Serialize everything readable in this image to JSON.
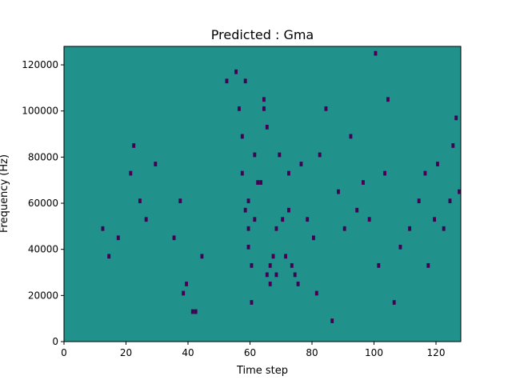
{
  "chart_data": {
    "type": "heatmap",
    "title": "Predicted : Gma",
    "xlabel": "Time step",
    "ylabel": "Frequency (Hz)",
    "xlim": [
      0,
      128
    ],
    "ylim": [
      0,
      128000
    ],
    "n_time_steps": 128,
    "n_frequency_bins": 64,
    "x_ticks": [
      {
        "value": 0,
        "label": "0"
      },
      {
        "value": 20,
        "label": "20"
      },
      {
        "value": 40,
        "label": "40"
      },
      {
        "value": 60,
        "label": "60"
      },
      {
        "value": 80,
        "label": "80"
      },
      {
        "value": 100,
        "label": "100"
      },
      {
        "value": 120,
        "label": "120"
      }
    ],
    "y_ticks": [
      {
        "value": 0,
        "label": "0"
      },
      {
        "value": 20000,
        "label": "20000"
      },
      {
        "value": 40000,
        "label": "40000"
      },
      {
        "value": 60000,
        "label": "60000"
      },
      {
        "value": 80000,
        "label": "80000"
      },
      {
        "value": 100000,
        "label": "100000"
      },
      {
        "value": 120000,
        "label": "120000"
      }
    ],
    "levels": {
      "-1": "#440154",
      "0": "#21918c",
      "1": "#fde725"
    },
    "background_level": 0,
    "cells": [
      [
        46,
        0,
        28,
        1
      ],
      [
        47,
        0,
        56,
        1
      ],
      [
        48,
        0,
        12,
        1
      ],
      [
        48,
        0,
        20,
        1
      ],
      [
        48,
        0,
        36,
        1
      ],
      [
        48,
        0,
        44,
        1
      ],
      [
        48,
        0,
        48,
        1
      ],
      [
        48,
        0,
        52,
        1
      ],
      [
        48,
        0,
        56,
        1
      ],
      [
        49,
        0,
        6,
        1
      ],
      [
        49,
        0,
        40,
        1
      ],
      [
        49,
        0,
        44,
        1
      ],
      [
        50,
        0,
        48,
        1
      ],
      [
        51,
        0,
        10,
        1
      ],
      [
        51,
        0,
        34,
        1
      ],
      [
        53,
        0,
        18,
        1
      ],
      [
        59,
        0,
        38,
        1
      ],
      [
        46,
        0,
        2,
        1
      ],
      [
        46,
        0,
        10,
        1
      ],
      [
        47,
        0,
        4,
        1
      ],
      [
        58,
        0,
        8,
        1
      ],
      [
        58,
        0,
        38,
        1
      ],
      [
        59,
        0,
        40,
        1
      ],
      [
        59,
        0,
        44,
        1
      ],
      [
        60,
        0,
        44,
        1
      ],
      [
        68,
        0,
        33,
        1
      ],
      [
        69,
        0,
        33,
        1
      ],
      [
        13,
        0,
        4,
        1
      ],
      [
        15,
        0,
        10,
        1
      ],
      [
        22,
        0,
        20,
        1
      ],
      [
        23,
        0,
        10,
        1
      ],
      [
        24,
        0,
        12,
        1
      ],
      [
        44,
        0,
        28,
        1
      ],
      [
        46,
        0,
        34,
        1
      ],
      [
        52,
        0,
        36,
        1
      ],
      [
        53,
        0,
        12,
        1
      ],
      [
        55,
        0,
        42,
        1
      ],
      [
        56,
        0,
        44,
        1
      ],
      [
        56,
        0,
        48,
        1
      ],
      [
        58,
        0,
        32,
        1
      ],
      [
        60,
        0,
        26,
        1
      ],
      [
        61,
        0,
        24,
        1
      ],
      [
        62,
        0,
        28,
        1
      ],
      [
        62,
        0,
        16,
        1
      ],
      [
        62,
        0,
        4,
        1
      ],
      [
        63,
        0,
        20,
        1
      ],
      [
        73,
        0,
        30,
        1
      ],
      [
        77,
        0,
        22,
        1
      ],
      [
        82,
        0,
        58,
        1
      ],
      [
        83,
        0,
        62,
        1
      ],
      [
        89,
        0,
        31,
        1
      ],
      [
        93,
        0,
        62,
        1
      ],
      [
        97,
        0,
        34,
        1
      ],
      [
        99,
        0,
        22,
        1
      ],
      [
        105,
        0,
        30,
        1
      ],
      [
        107,
        0,
        10,
        1
      ],
      [
        108,
        0,
        44,
        1
      ],
      [
        109,
        0,
        18,
        1
      ],
      [
        110,
        0,
        28,
        1
      ],
      [
        112,
        0,
        18,
        1
      ],
      [
        113,
        0,
        20,
        1
      ],
      [
        114,
        0,
        18,
        1
      ],
      [
        115,
        0,
        48,
        1
      ],
      [
        118,
        0,
        20,
        1
      ],
      [
        118,
        0,
        30,
        1
      ],
      [
        12,
        -1,
        24,
        1
      ],
      [
        14,
        -1,
        18,
        1
      ],
      [
        17,
        -1,
        22,
        1
      ],
      [
        21,
        -1,
        36,
        1
      ],
      [
        22,
        -1,
        42,
        1
      ],
      [
        24,
        -1,
        30,
        1
      ],
      [
        26,
        -1,
        26,
        1
      ],
      [
        29,
        -1,
        38,
        1
      ],
      [
        35,
        -1,
        22,
        1
      ],
      [
        37,
        -1,
        30,
        1
      ],
      [
        38,
        -1,
        10,
        1
      ],
      [
        39,
        -1,
        12,
        1
      ],
      [
        41,
        -1,
        6,
        1
      ],
      [
        42,
        -1,
        6,
        1
      ],
      [
        44,
        -1,
        18,
        1
      ],
      [
        52,
        -1,
        56,
        1
      ],
      [
        55,
        -1,
        58,
        1
      ],
      [
        56,
        -1,
        50,
        1
      ],
      [
        57,
        -1,
        44,
        1
      ],
      [
        57,
        -1,
        36,
        1
      ],
      [
        58,
        -1,
        56,
        1
      ],
      [
        58,
        -1,
        28,
        1
      ],
      [
        59,
        -1,
        20,
        1
      ],
      [
        59,
        -1,
        24,
        1
      ],
      [
        59,
        -1,
        30,
        1
      ],
      [
        60,
        -1,
        16,
        1
      ],
      [
        60,
        -1,
        8,
        1
      ],
      [
        61,
        -1,
        26,
        1
      ],
      [
        61,
        -1,
        40,
        1
      ],
      [
        62,
        -1,
        34,
        1
      ],
      [
        63,
        -1,
        34,
        1
      ],
      [
        64,
        -1,
        50,
        1
      ],
      [
        64,
        -1,
        52,
        1
      ],
      [
        65,
        -1,
        46,
        1
      ],
      [
        65,
        -1,
        14,
        1
      ],
      [
        66,
        -1,
        12,
        1
      ],
      [
        66,
        -1,
        16,
        1
      ],
      [
        67,
        -1,
        18,
        1
      ],
      [
        68,
        -1,
        24,
        1
      ],
      [
        68,
        -1,
        14,
        1
      ],
      [
        69,
        -1,
        40,
        1
      ],
      [
        70,
        -1,
        26,
        1
      ],
      [
        71,
        -1,
        18,
        1
      ],
      [
        72,
        -1,
        28,
        1
      ],
      [
        72,
        -1,
        36,
        1
      ],
      [
        73,
        -1,
        16,
        1
      ],
      [
        74,
        -1,
        14,
        1
      ],
      [
        75,
        -1,
        12,
        1
      ],
      [
        76,
        -1,
        38,
        1
      ],
      [
        78,
        -1,
        26,
        1
      ],
      [
        80,
        -1,
        22,
        1
      ],
      [
        81,
        -1,
        10,
        1
      ],
      [
        82,
        -1,
        40,
        1
      ],
      [
        84,
        -1,
        50,
        1
      ],
      [
        86,
        -1,
        4,
        1
      ],
      [
        88,
        -1,
        32,
        1
      ],
      [
        90,
        -1,
        24,
        1
      ],
      [
        92,
        -1,
        44,
        1
      ],
      [
        94,
        -1,
        28,
        1
      ],
      [
        96,
        -1,
        34,
        1
      ],
      [
        98,
        -1,
        26,
        1
      ],
      [
        100,
        -1,
        62,
        1
      ],
      [
        101,
        -1,
        16,
        1
      ],
      [
        103,
        -1,
        36,
        1
      ],
      [
        104,
        -1,
        52,
        1
      ],
      [
        106,
        -1,
        8,
        1
      ],
      [
        108,
        -1,
        20,
        1
      ],
      [
        111,
        -1,
        24,
        1
      ],
      [
        114,
        -1,
        30,
        1
      ],
      [
        116,
        -1,
        36,
        1
      ],
      [
        117,
        -1,
        16,
        1
      ],
      [
        119,
        -1,
        26,
        1
      ],
      [
        120,
        -1,
        38,
        1
      ],
      [
        122,
        -1,
        24,
        1
      ],
      [
        124,
        -1,
        30,
        1
      ],
      [
        125,
        -1,
        42,
        1
      ],
      [
        126,
        -1,
        48,
        1
      ],
      [
        127,
        -1,
        32,
        1
      ]
    ]
  }
}
